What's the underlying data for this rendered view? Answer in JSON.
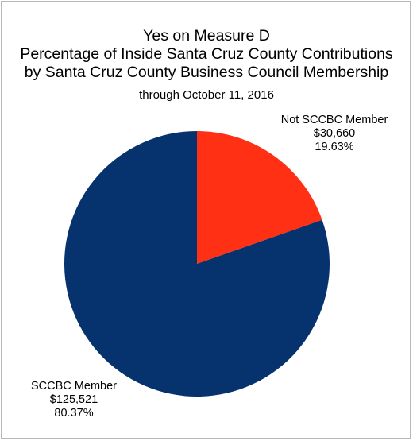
{
  "chart_data": {
    "type": "pie",
    "title": [
      "Yes on Measure D",
      "Percentage of Inside Santa Cruz County Contributions",
      "by Santa Cruz County Business Council Membership"
    ],
    "subtitle": "through October 11, 2016",
    "slices": [
      {
        "name": "Not SCCBC Member",
        "amount": "$30,660",
        "percent_label": "19.63%",
        "value": 19.63,
        "color": "#ff3014"
      },
      {
        "name": "SCCBC Member",
        "amount": "$125,521",
        "percent_label": "80.37%",
        "value": 80.37,
        "color": "#06326e"
      }
    ],
    "start_angle": "12 o'clock",
    "direction": "clockwise"
  }
}
